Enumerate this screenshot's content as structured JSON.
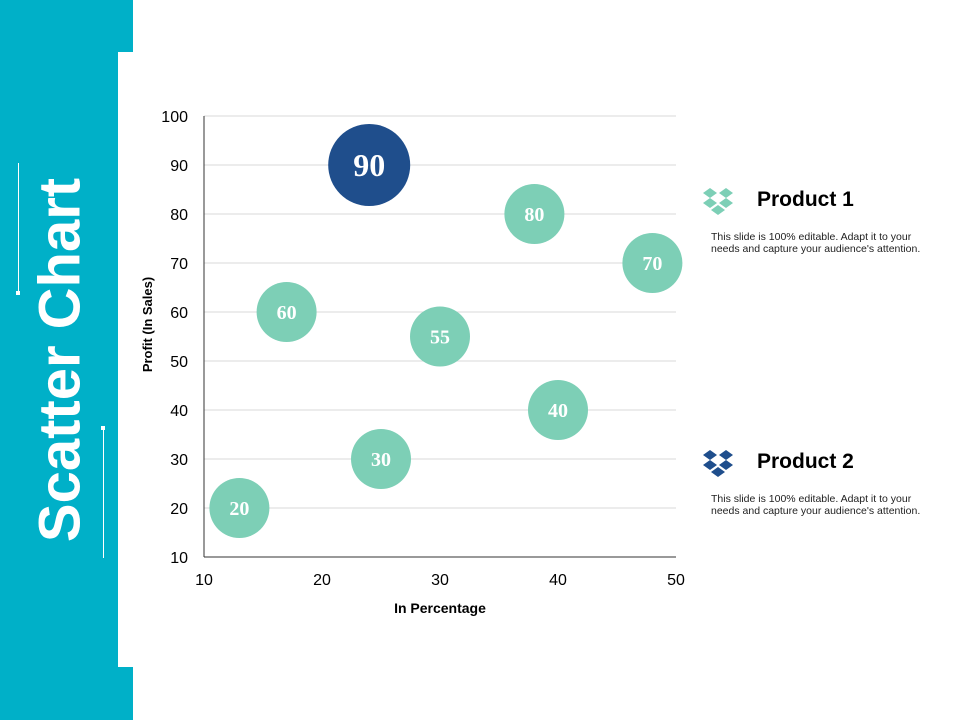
{
  "slide_title": "Scatter Chart",
  "colors": {
    "sidebar": "#00b0c8",
    "product1": "#7dcfb6",
    "product2": "#1f4e8c"
  },
  "legend": [
    {
      "title": "Product 1",
      "text": "This slide is 100% editable. Adapt it to your needs and capture your audience's attention.",
      "icon": "dropbox-icon"
    },
    {
      "title": "Product 2",
      "text": "This slide is 100% editable. Adapt it to your needs and capture your audience's attention.",
      "icon": "dropbox-icon"
    }
  ],
  "chart_data": {
    "type": "scatter",
    "xlabel": "In Percentage",
    "ylabel": "Profit  (In Sales)",
    "xlim": [
      10,
      50
    ],
    "ylim": [
      10,
      100
    ],
    "xticks": [
      "10",
      "20",
      "30",
      "40",
      "50"
    ],
    "yticks": [
      "10",
      "20",
      "30",
      "40",
      "50",
      "60",
      "70",
      "80",
      "90",
      "100"
    ],
    "grid": true,
    "series": [
      {
        "name": "Product 1",
        "points": [
          {
            "x": 13,
            "y": 20,
            "label": "20"
          },
          {
            "x": 17,
            "y": 60,
            "label": "60"
          },
          {
            "x": 25,
            "y": 30,
            "label": "30"
          },
          {
            "x": 30,
            "y": 55,
            "label": "55"
          },
          {
            "x": 38,
            "y": 80,
            "label": "80"
          },
          {
            "x": 40,
            "y": 40,
            "label": "40"
          },
          {
            "x": 48,
            "y": 70,
            "label": "70"
          }
        ]
      },
      {
        "name": "Product 2",
        "points": [
          {
            "x": 24,
            "y": 90,
            "label": "90"
          }
        ]
      }
    ]
  }
}
